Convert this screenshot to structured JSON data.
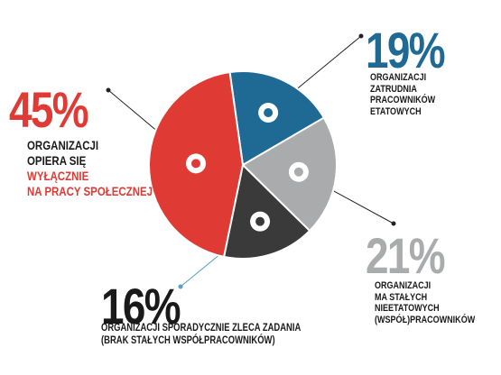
{
  "chart_data": {
    "type": "pie",
    "slices": [
      {
        "key": "blue",
        "value": 19,
        "percent_label": "19%",
        "color": "#1e6a94",
        "label_lines": [
          "ORGANIZACJI",
          "ZATRUDNIA",
          "PRACOWNIKÓW",
          "ETATOWYCH"
        ]
      },
      {
        "key": "gray",
        "value": 21,
        "percent_label": "21%",
        "color": "#a9abad",
        "label_lines": [
          "ORGANIZACJI",
          "MA STAŁYCH",
          "NIEETATOWYCH",
          "(WSPÓŁ)PRACOWNIKÓW"
        ]
      },
      {
        "key": "dark",
        "value": 16,
        "percent_label": "16%",
        "color": "#3a3a3a",
        "label_lines": [
          "ORGANIZACJI SPORADYCZNIE ZLECA ZADANIA",
          "(BRAK STAŁYCH WSPÓŁPRACOWNIKÓW)"
        ]
      },
      {
        "key": "red",
        "value": 45,
        "percent_label": "45%",
        "color": "#e03a35",
        "label_lines": [
          "ORGANIZACJI",
          "OPIERA SIĘ",
          "WYŁĄCZNIE",
          "NA PRACY SPOŁECZNEJ"
        ],
        "highlight_lines": [
          2,
          3
        ]
      }
    ],
    "legend": "none",
    "title": ""
  },
  "colors": {
    "connector": "#222222",
    "text": "#1a1a1a",
    "pct_gray": "#a9abad"
  }
}
